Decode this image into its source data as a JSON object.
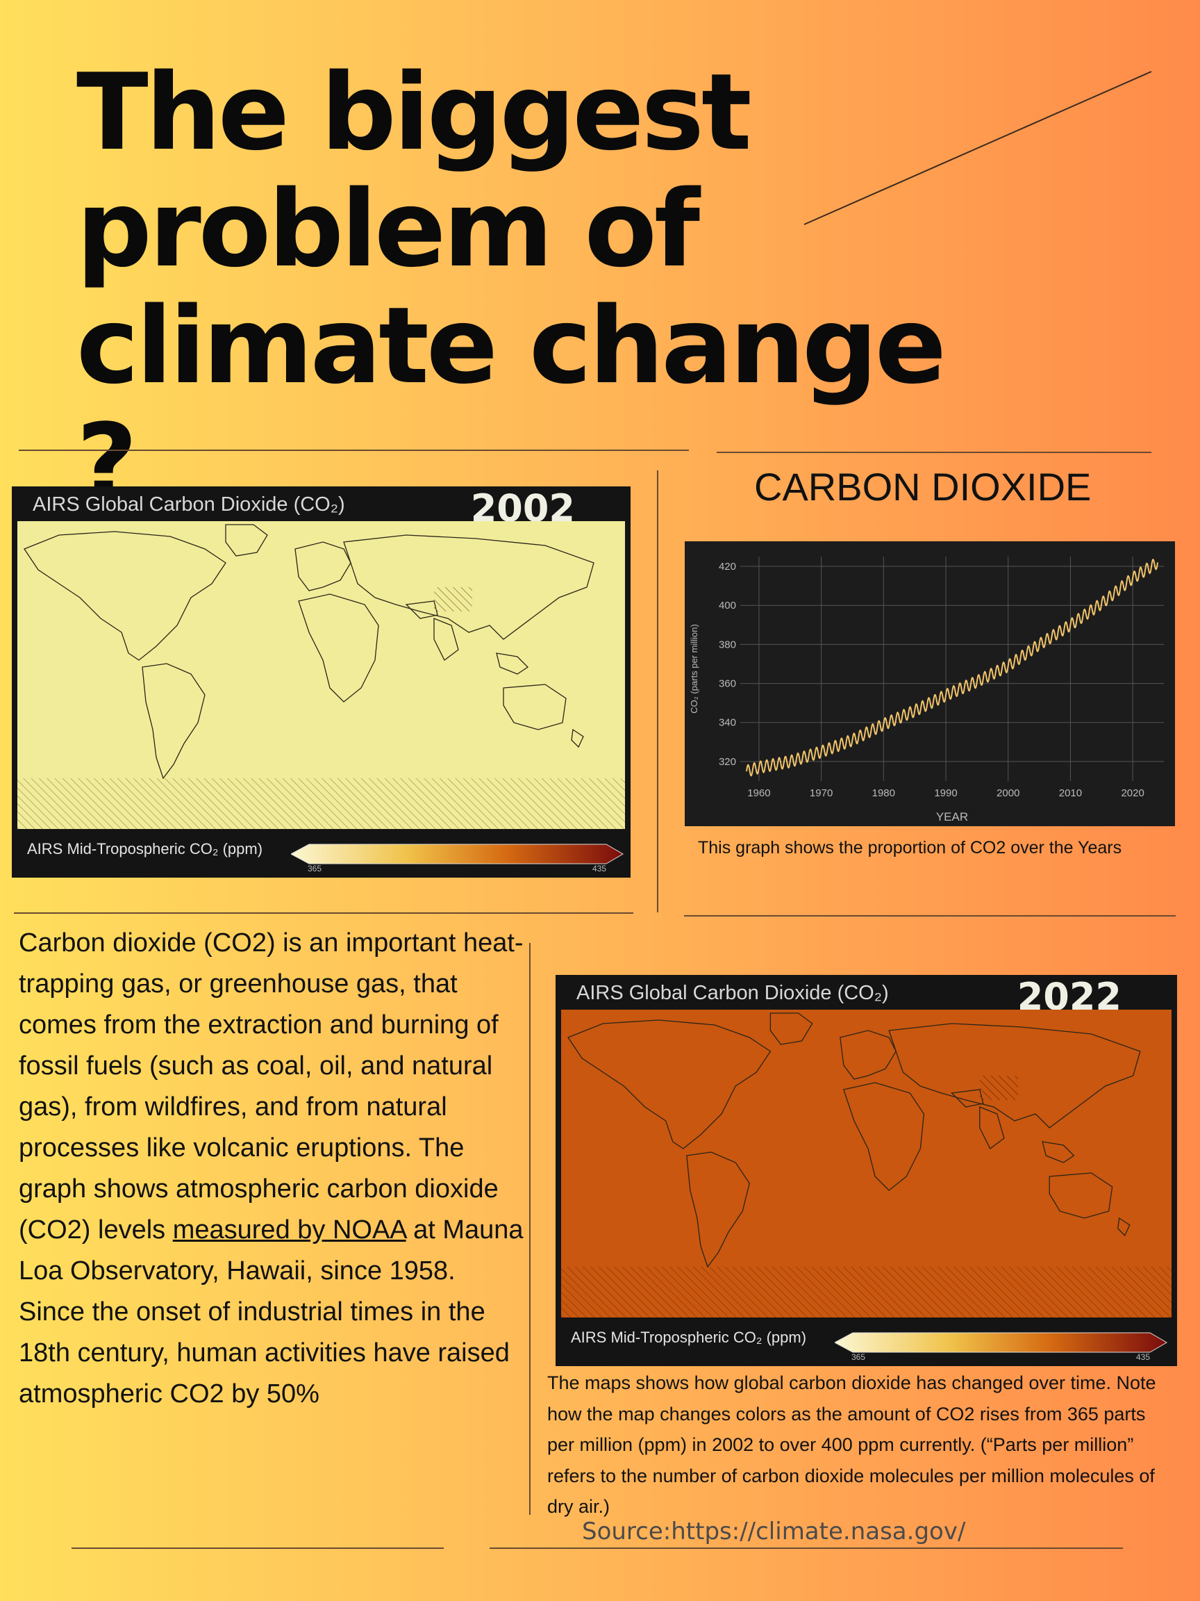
{
  "title": {
    "line1": "The biggest",
    "line2": "problem of",
    "line3": "climate change ?"
  },
  "map_2002": {
    "header": "AIRS Global Carbon Dioxide (CO₂)",
    "year": "2002",
    "legend_label": "AIRS Mid-Tropospheric CO₂ (ppm)",
    "tick_min": "365",
    "tick_max": "435",
    "ocean_color": "#f1ec9a"
  },
  "map_2022": {
    "header": "AIRS Global Carbon Dioxide (CO₂)",
    "year": "2022",
    "legend_label": "AIRS Mid-Tropospheric CO₂ (ppm)",
    "tick_min": "365",
    "tick_max": "435",
    "ocean_color": "#c9570f"
  },
  "chart_heading": "CARBON DIOXIDE",
  "chart_caption": "This graph shows the proportion of CO2 over the Years",
  "chart_data": {
    "type": "line",
    "xlabel": "YEAR",
    "ylabel": "CO₂ (parts per million)",
    "xlim": [
      1957,
      2025
    ],
    "ylim": [
      310,
      425
    ],
    "xticks": [
      1960,
      1970,
      1980,
      1990,
      2000,
      2010,
      2020
    ],
    "yticks": [
      320,
      340,
      360,
      380,
      400,
      420
    ],
    "grid": true,
    "series": [
      {
        "color": "#f2c46a",
        "x": [
          1958,
          1960,
          1965,
          1970,
          1975,
          1980,
          1985,
          1990,
          1995,
          2000,
          2005,
          2010,
          2015,
          2020,
          2024
        ],
        "y": [
          315,
          317,
          320,
          325,
          331,
          339,
          346,
          354,
          361,
          369,
          380,
          390,
          401,
          414,
          422
        ]
      }
    ],
    "seasonal_amplitude_ppm": 3
  },
  "body": {
    "p1_before": "Carbon dioxide (CO2) is an important heat-trapping gas, or greenhouse gas, that comes from the extraction and burning of fossil fuels (such as coal, oil, and natural gas), from wildfires, and from natural processes like volcanic eruptions. The graph shows atmospheric carbon dioxide (CO2) levels ",
    "p1_link": "measured by NOAA",
    "p1_after": " at Mauna Loa Observatory, Hawaii, since 1958.",
    "p2": "Since the onset of industrial times in the 18th century, human activities have raised atmospheric CO2 by 50%"
  },
  "map_caption": "The maps shows how global carbon dioxide has changed over time. Note how the map changes colors as the amount of CO2 rises from 365 parts per million (ppm) in 2002 to over 400 ppm currently. (“Parts per million” refers to the number of carbon dioxide molecules per million molecules of dry air.)",
  "source": "Source:https://climate.nasa.gov/"
}
